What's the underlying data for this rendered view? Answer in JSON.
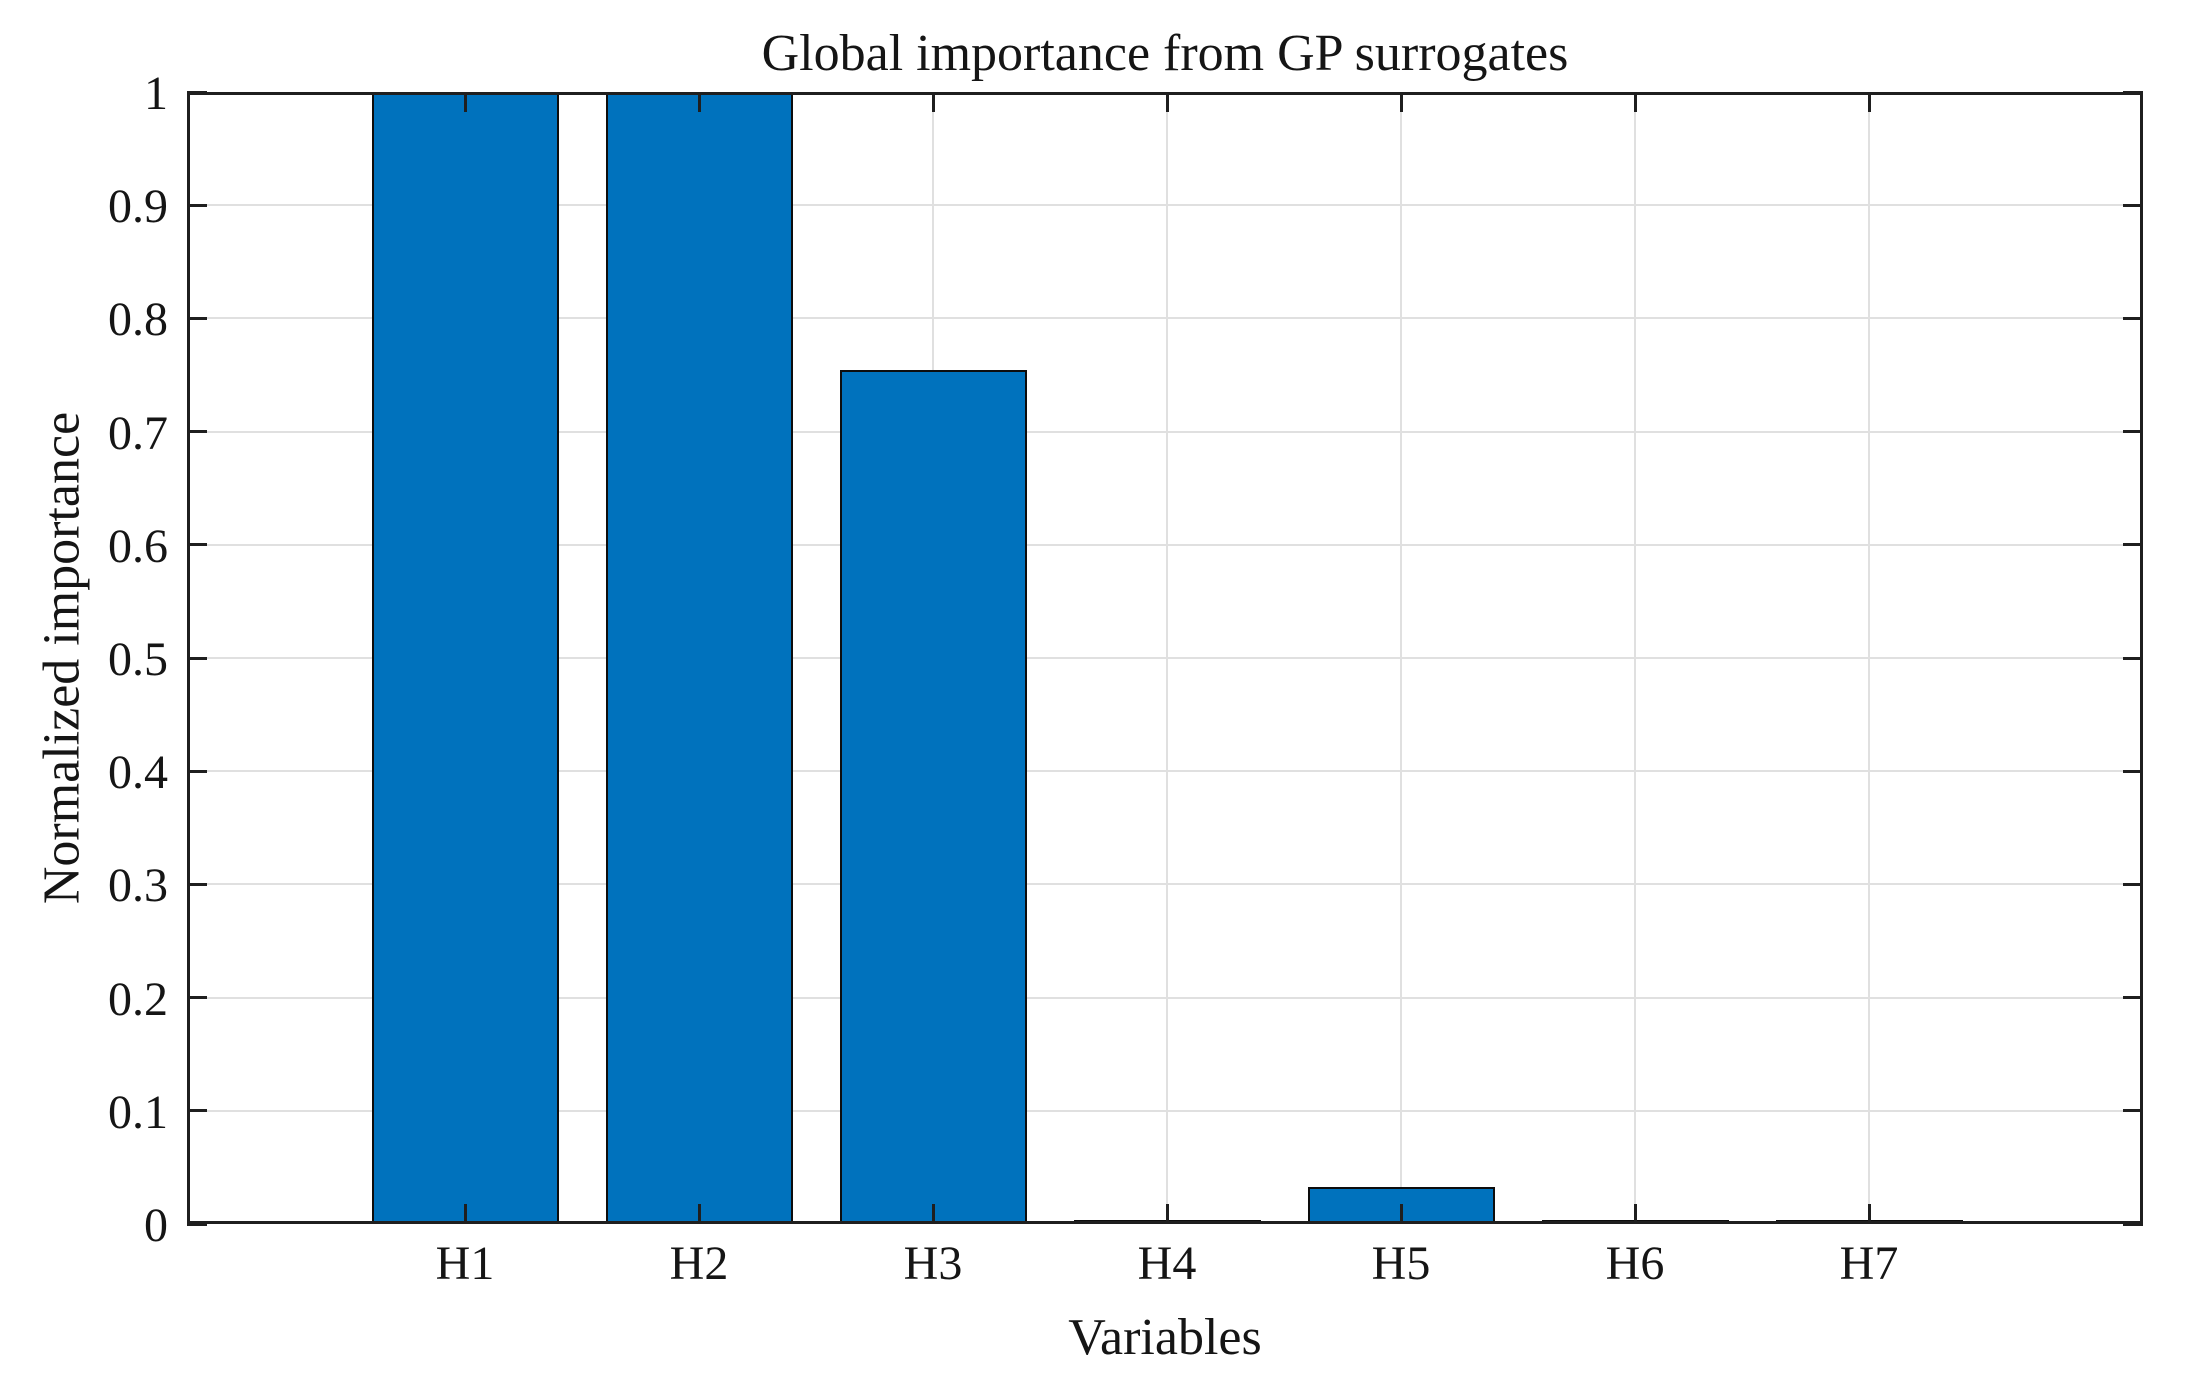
{
  "chart_data": {
    "type": "bar",
    "title": "Global importance from GP surrogates",
    "xlabel": "Variables",
    "ylabel": "Normalized importance",
    "categories": [
      "H1",
      "H2",
      "H3",
      "H4",
      "H5",
      "H6",
      "H7"
    ],
    "values": [
      1.0,
      1.0,
      0.754,
      0.003,
      0.033,
      0.001,
      0.002
    ],
    "series_name": "Normalized importance",
    "ylim": [
      0,
      1
    ],
    "yticks": [
      0,
      0.1,
      0.2,
      0.3,
      0.4,
      0.5,
      0.6,
      0.7,
      0.8,
      0.9,
      1
    ],
    "ytick_labels": [
      "0",
      "0.1",
      "0.2",
      "0.3",
      "0.4",
      "0.5",
      "0.6",
      "0.7",
      "0.8",
      "0.9",
      "1"
    ],
    "grid": true,
    "legend": null,
    "legend_position": "none",
    "bar_color": "#0072BD",
    "bar_edge_color": "#0d0d0d",
    "axis_color": "#1f1f1f",
    "grid_color": "#e0e0e0",
    "background_color": "#ffffff",
    "bar_width_fraction": 0.8
  }
}
